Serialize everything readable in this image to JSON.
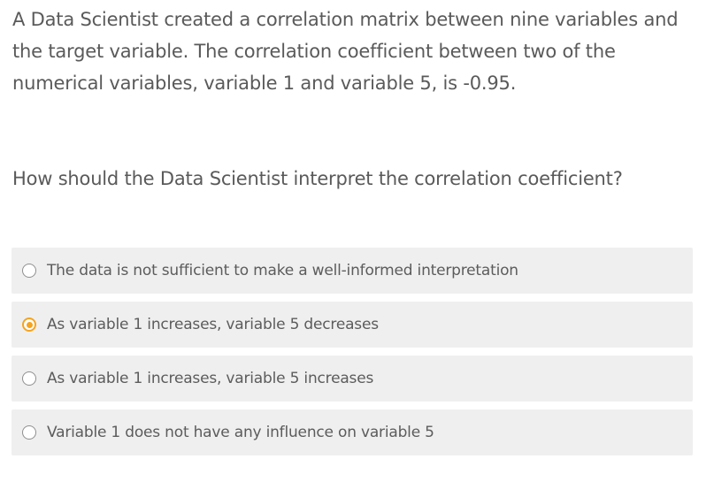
{
  "question": {
    "text": "A Data Scientist created a correlation matrix between nine variables and the target variable. The correlation coefficient between two of the numerical variables, variable 1 and variable 5, is -0.95.",
    "prompt": "How should the Data Scientist interpret the correlation coefficient?"
  },
  "options": [
    {
      "label": "The data is not sufficient to make a well-informed interpretation",
      "selected": false
    },
    {
      "label": "As variable 1 increases, variable 5 decreases",
      "selected": true
    },
    {
      "label": "As variable 1 increases, variable 5 increases",
      "selected": false
    },
    {
      "label": "Variable 1 does not have any influence on variable 5",
      "selected": false
    }
  ],
  "colors": {
    "accent": "#f5a41f",
    "option_background": "#efefef",
    "text": "#5a5a5a"
  }
}
